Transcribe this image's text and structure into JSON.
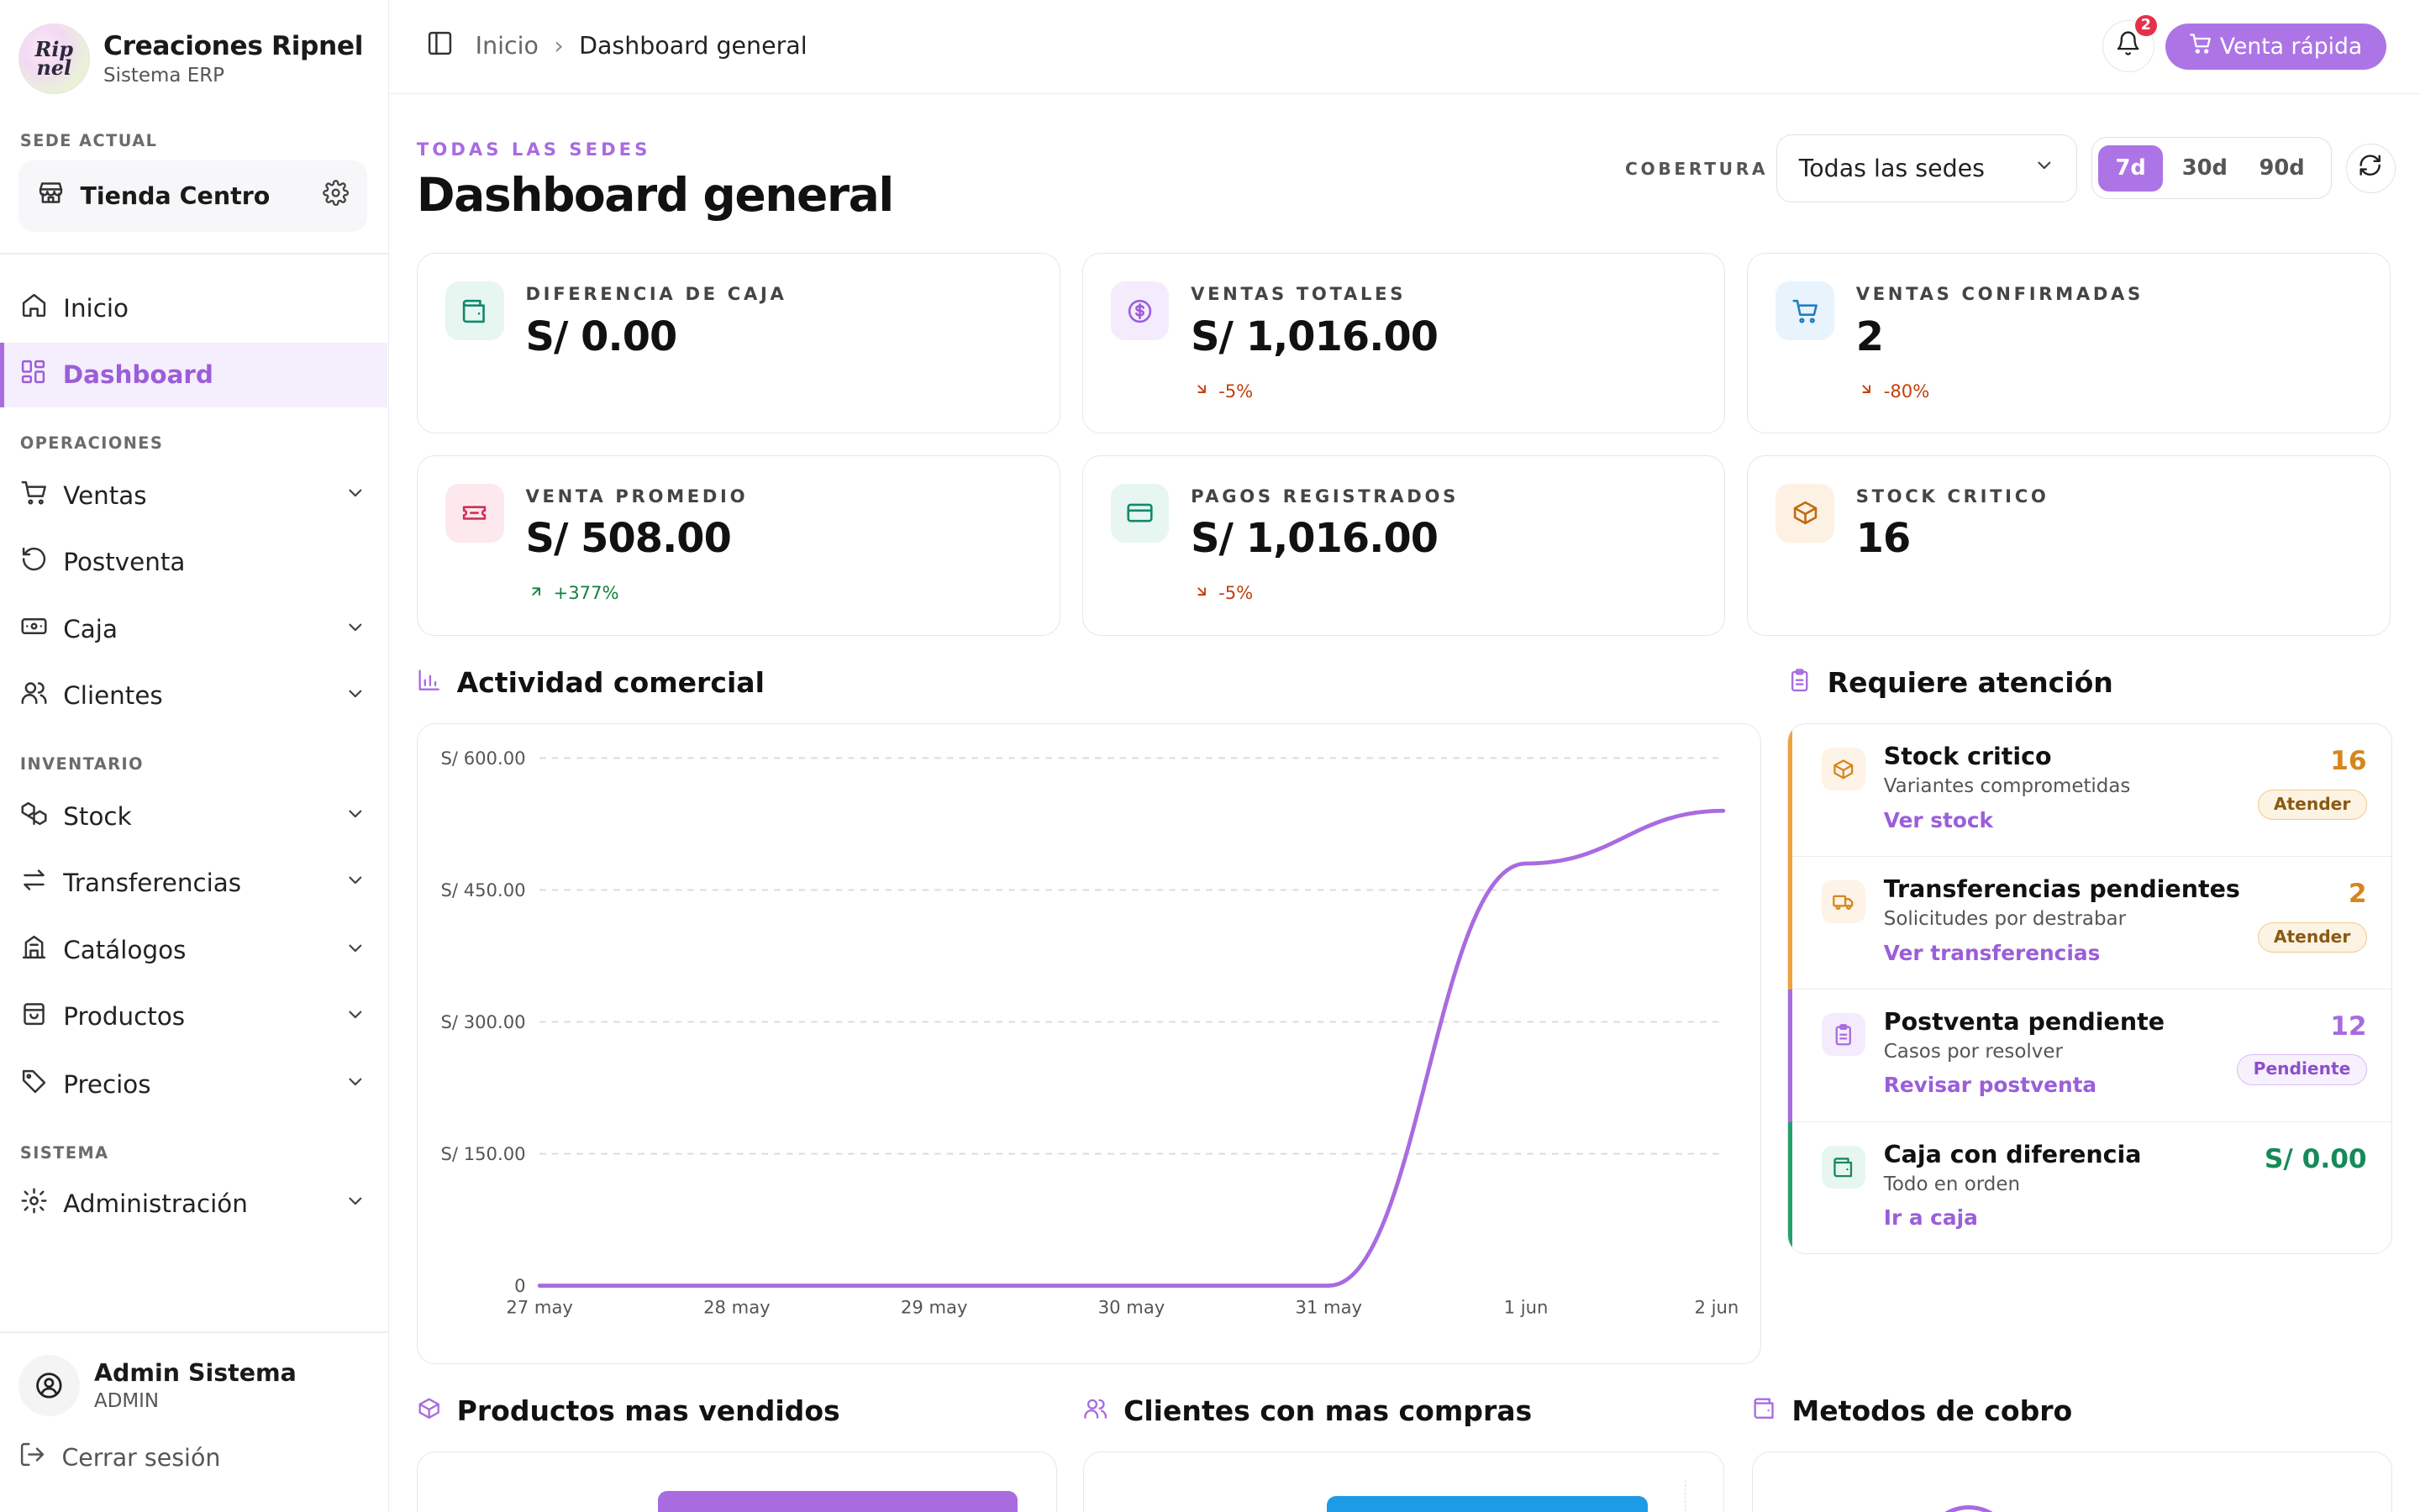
{
  "brand": {
    "logo_text": "Rip nel",
    "name": "Creaciones Ripnel",
    "subtitle": "Sistema ERP"
  },
  "sede": {
    "section_label": "SEDE ACTUAL",
    "name": "Tienda Centro"
  },
  "nav": {
    "inicio": "Inicio",
    "dashboard": "Dashboard",
    "operaciones_label": "OPERACIONES",
    "ventas": "Ventas",
    "postventa": "Postventa",
    "caja": "Caja",
    "clientes": "Clientes",
    "inventario_label": "INVENTARIO",
    "stock": "Stock",
    "transferencias": "Transferencias",
    "catalogos": "Catálogos",
    "productos": "Productos",
    "precios": "Precios",
    "sistema_label": "SISTEMA",
    "administracion": "Administración"
  },
  "user": {
    "name": "Admin Sistema",
    "role": "ADMIN",
    "logout": "Cerrar sesión"
  },
  "header": {
    "breadcrumb_home": "Inicio",
    "breadcrumb_separator": "›",
    "breadcrumb_current": "Dashboard general",
    "notifications_count": "2",
    "quick_sale": "Venta rápida"
  },
  "page": {
    "eyebrow": "TODAS LAS SEDES",
    "title": "Dashboard general",
    "coverage_label": "COBERTURA",
    "coverage_value": "Todas las sedes",
    "ranges": [
      "7d",
      "30d",
      "90d"
    ],
    "active_range": "7d"
  },
  "kpis": [
    {
      "label": "DIFERENCIA DE CAJA",
      "value": "S/ 0.00",
      "delta": "",
      "icon": "wallet-icon",
      "color": "#0f8a6b",
      "bg": "#e7f6f0"
    },
    {
      "label": "VENTAS TOTALES",
      "value": "S/ 1,016.00",
      "delta": "-5%",
      "icon": "dollar-icon",
      "color": "#9b5ed8",
      "bg": "#f4ecfc"
    },
    {
      "label": "VENTAS CONFIRMADAS",
      "value": "2",
      "delta": "-80%",
      "icon": "cart-icon",
      "color": "#1f7fc4",
      "bg": "#e8f3fb"
    },
    {
      "label": "VENTA PROMEDIO",
      "value": "S/ 508.00",
      "delta": "+377%",
      "icon": "ticket-icon",
      "color": "#d42f54",
      "bg": "#fde8ed"
    },
    {
      "label": "PAGOS REGISTRADOS",
      "value": "S/ 1,016.00",
      "delta": "-5%",
      "icon": "card-icon",
      "color": "#0f8a6b",
      "bg": "#e7f6f0"
    },
    {
      "label": "STOCK CRITICO",
      "value": "16",
      "delta": "",
      "icon": "box-icon",
      "color": "#c06a10",
      "bg": "#fdf1e3"
    }
  ],
  "activity": {
    "title": "Actividad comercial",
    "chart_data": {
      "type": "line",
      "x": [
        "27 may",
        "28 may",
        "29 may",
        "30 may",
        "31 may",
        "1 jun",
        "2 jun"
      ],
      "y": [
        0,
        0,
        0,
        0,
        0,
        480,
        540
      ],
      "ylim": [
        0,
        600
      ],
      "yticks": [
        "S/ 600.00",
        "S/ 450.00",
        "S/ 300.00",
        "S/ 150.00",
        "0"
      ],
      "ytick_values": [
        600,
        450,
        300,
        150,
        0
      ],
      "color": "#a86be0",
      "grid": true
    }
  },
  "attention": {
    "title": "Requiere atención",
    "items": [
      {
        "title": "Stock critico",
        "subtitle": "Variantes comprometidas",
        "link": "Ver stock",
        "count": "16",
        "badge": "Atender",
        "accent": "#f0a23a",
        "count_color": "#d6861e"
      },
      {
        "title": "Transferencias pendientes",
        "subtitle": "Solicitudes por destrabar",
        "link": "Ver transferencias",
        "count": "2",
        "badge": "Atender",
        "accent": "#f0a23a",
        "count_color": "#d6861e"
      },
      {
        "title": "Postventa pendiente",
        "subtitle": "Casos por resolver",
        "link": "Revisar postventa",
        "count": "12",
        "badge": "Pendiente",
        "accent": "#a86be0",
        "count_color": "#a86be0"
      },
      {
        "title": "Caja con diferencia",
        "subtitle": "Todo en orden",
        "link": "Ir a caja",
        "count": "S/ 0.00",
        "badge": "",
        "accent": "#22a06b",
        "count_color": "#168a58"
      }
    ]
  },
  "bottom": {
    "products_title": "Productos mas vendidos",
    "clients_title": "Clientes con mas compras",
    "methods_title": "Metodos de cobro"
  }
}
